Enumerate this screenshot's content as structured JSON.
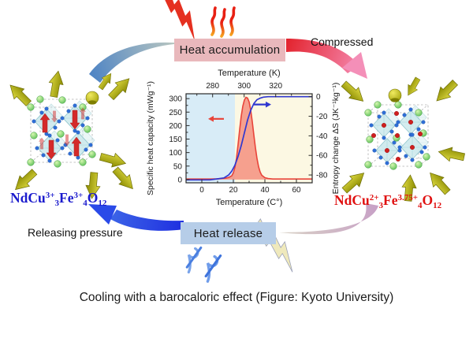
{
  "top": {
    "heat_accumulation_label": "Heat accumulation",
    "compressed_label": "Compressed"
  },
  "bottom": {
    "heat_release_label": "Heat release",
    "releasing_pressure_label": "Releasing pressure"
  },
  "left_material": {
    "color": "#1a1acd",
    "formula_parts": [
      {
        "t": "base",
        "v": "NdCu"
      },
      {
        "t": "sup",
        "v": "3+"
      },
      {
        "t": "sub",
        "v": "3"
      },
      {
        "t": "base",
        "v": "Fe"
      },
      {
        "t": "sup",
        "v": "3+"
      },
      {
        "t": "sub",
        "v": "4"
      },
      {
        "t": "base",
        "v": "O"
      },
      {
        "t": "sub",
        "v": "12"
      }
    ]
  },
  "right_material": {
    "color": "#e01010",
    "formula_parts": [
      {
        "t": "base",
        "v": "NdCu"
      },
      {
        "t": "sup",
        "v": "2+"
      },
      {
        "t": "sub",
        "v": "3"
      },
      {
        "t": "base",
        "v": "Fe"
      },
      {
        "t": "sup",
        "v": "3.75+"
      },
      {
        "t": "sub",
        "v": "4"
      },
      {
        "t": "base",
        "v": "O"
      },
      {
        "t": "sub",
        "v": "12"
      }
    ]
  },
  "caption": "Cooling with a barocaloric effect (Figure: Kyoto University)",
  "colors": {
    "heat_box": "#e9b8bc",
    "cool_box": "#b6cde8",
    "yellow_arrow": "#b9b400",
    "swoosh_blue": "#2f5fd0",
    "swoosh_red": "#e8293a",
    "swoosh_mauve": "#c79fc6"
  },
  "chart_data": {
    "type": "line",
    "title": "",
    "x_bottom": {
      "label": "Temperature (C°)",
      "ticks": [
        0,
        20,
        40,
        60
      ],
      "minor_ticks": [
        10,
        30,
        50
      ],
      "range": [
        -10,
        70
      ]
    },
    "x_top": {
      "label": "Temperature (K)",
      "ticks": [
        280,
        300,
        320
      ],
      "minor_ticks": [
        270,
        290,
        310,
        330
      ],
      "offset": 273.15
    },
    "y_left": {
      "label": "Specific heat capacity (mWg⁻¹)",
      "ticks": [
        0,
        50,
        100,
        150,
        200,
        250,
        300
      ],
      "minor_ticks": [
        25,
        75,
        125,
        175,
        225,
        275
      ],
      "range": [
        -12,
        318
      ]
    },
    "y_right": {
      "label": "Entropy change ΔS (JK⁻¹kg⁻¹)",
      "ticks": [
        0,
        -20,
        -40,
        -60,
        -80
      ],
      "minor_ticks": [
        -10,
        -30,
        -50,
        -70
      ],
      "range": [
        -88,
        3
      ]
    },
    "background_split_c": 21,
    "bg_left_color": "#d8ecf7",
    "bg_right_color": "#fcf8e3",
    "grid": false,
    "series": [
      {
        "name": "specific_heat",
        "axis": "left",
        "color": "#e8443a",
        "fill": "#f4907f",
        "fill_opacity": 0.85,
        "x": [
          -10,
          0,
          6,
          10,
          13,
          15,
          17,
          19,
          20,
          21,
          22,
          23,
          24,
          25,
          26,
          27,
          28,
          29,
          30,
          31,
          32,
          33,
          34,
          35,
          36,
          37,
          38,
          40,
          42,
          45,
          50,
          55,
          60,
          65,
          70
        ],
        "y": [
          2,
          2,
          2,
          3,
          4,
          5,
          8,
          14,
          25,
          45,
          80,
          130,
          185,
          235,
          272,
          295,
          305,
          302,
          288,
          258,
          215,
          165,
          118,
          78,
          48,
          28,
          16,
          7,
          4,
          2,
          2,
          2,
          2,
          2,
          2
        ]
      },
      {
        "name": "entropy_change",
        "axis": "right",
        "color": "#3038d0",
        "x": [
          -10,
          0,
          5,
          10,
          14,
          17,
          19,
          21,
          23,
          25,
          27,
          29,
          31,
          33,
          35,
          37,
          39,
          42,
          46,
          50,
          55,
          60,
          65,
          70
        ],
        "y": [
          -85,
          -85,
          -85,
          -84,
          -83,
          -80,
          -76,
          -70,
          -61,
          -50,
          -37,
          -24,
          -14,
          -7,
          -3,
          -1.5,
          -0.5,
          0,
          0,
          0,
          0,
          0,
          0,
          0
        ]
      }
    ],
    "annotations": [
      {
        "type": "arrow",
        "axis": "left",
        "color": "#e8443a",
        "x_from": 14,
        "x_to": 4,
        "y": 225
      },
      {
        "type": "arrow",
        "axis": "right",
        "color": "#3038d0",
        "x_from": 33,
        "x_to": 44,
        "y": -8
      }
    ]
  }
}
